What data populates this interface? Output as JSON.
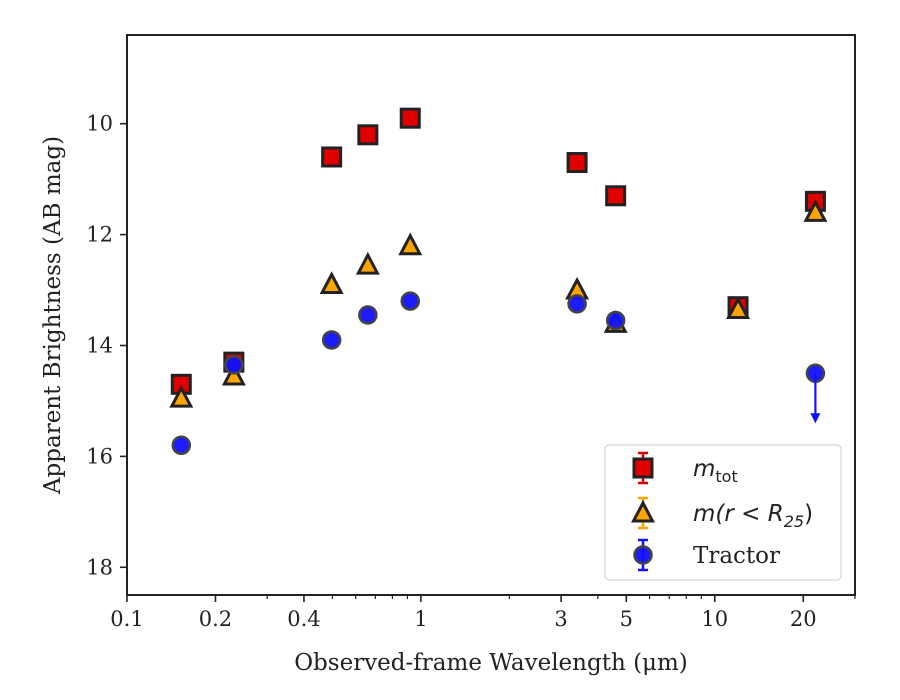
{
  "chart_data": {
    "type": "scatter",
    "xlabel": "Observed-frame Wavelength (μm)",
    "ylabel": "Apparent Brightness (AB mag)",
    "xscale": "log",
    "xlim": [
      0.1,
      30
    ],
    "ylim": [
      18.5,
      8.4
    ],
    "y_inverted": true,
    "xticks": [
      0.1,
      0.2,
      0.4,
      1,
      3,
      5,
      10,
      20
    ],
    "xtick_labels": [
      "0.1",
      "0.2",
      "0.4",
      "1",
      "3",
      "5",
      "10",
      "20"
    ],
    "yticks": [
      10,
      12,
      14,
      16,
      18
    ],
    "ytick_labels": [
      "10",
      "12",
      "14",
      "16",
      "18"
    ],
    "grid": false,
    "legend_position": "lower-right",
    "series": [
      {
        "name_base": "m",
        "name_sub": "tot",
        "marker": "square",
        "color": "#e00000",
        "x": [
          0.153,
          0.231,
          0.497,
          0.66,
          0.92,
          3.4,
          4.6,
          12.0,
          22.0
        ],
        "y": [
          14.7,
          14.3,
          10.6,
          10.2,
          9.9,
          10.7,
          11.3,
          13.3,
          11.4
        ],
        "upper_limits": []
      },
      {
        "name_base": "m(r < R",
        "name_sub": "25",
        "name_close": ")",
        "marker": "triangle",
        "color": "#ffa500",
        "x": [
          0.153,
          0.231,
          0.497,
          0.66,
          0.92,
          3.4,
          4.6,
          12.0,
          22.0
        ],
        "y": [
          14.95,
          14.55,
          12.9,
          12.55,
          12.2,
          13.0,
          13.6,
          13.35,
          11.6
        ],
        "upper_limits": []
      },
      {
        "name": "Tractor",
        "marker": "circle",
        "color": "#1010ff",
        "x": [
          0.153,
          0.231,
          0.497,
          0.66,
          0.92,
          3.4,
          4.6,
          22.0
        ],
        "y": [
          15.8,
          14.35,
          13.9,
          13.45,
          13.2,
          13.25,
          13.55,
          14.5
        ],
        "upper_limits": [
          22.0
        ]
      }
    ]
  }
}
